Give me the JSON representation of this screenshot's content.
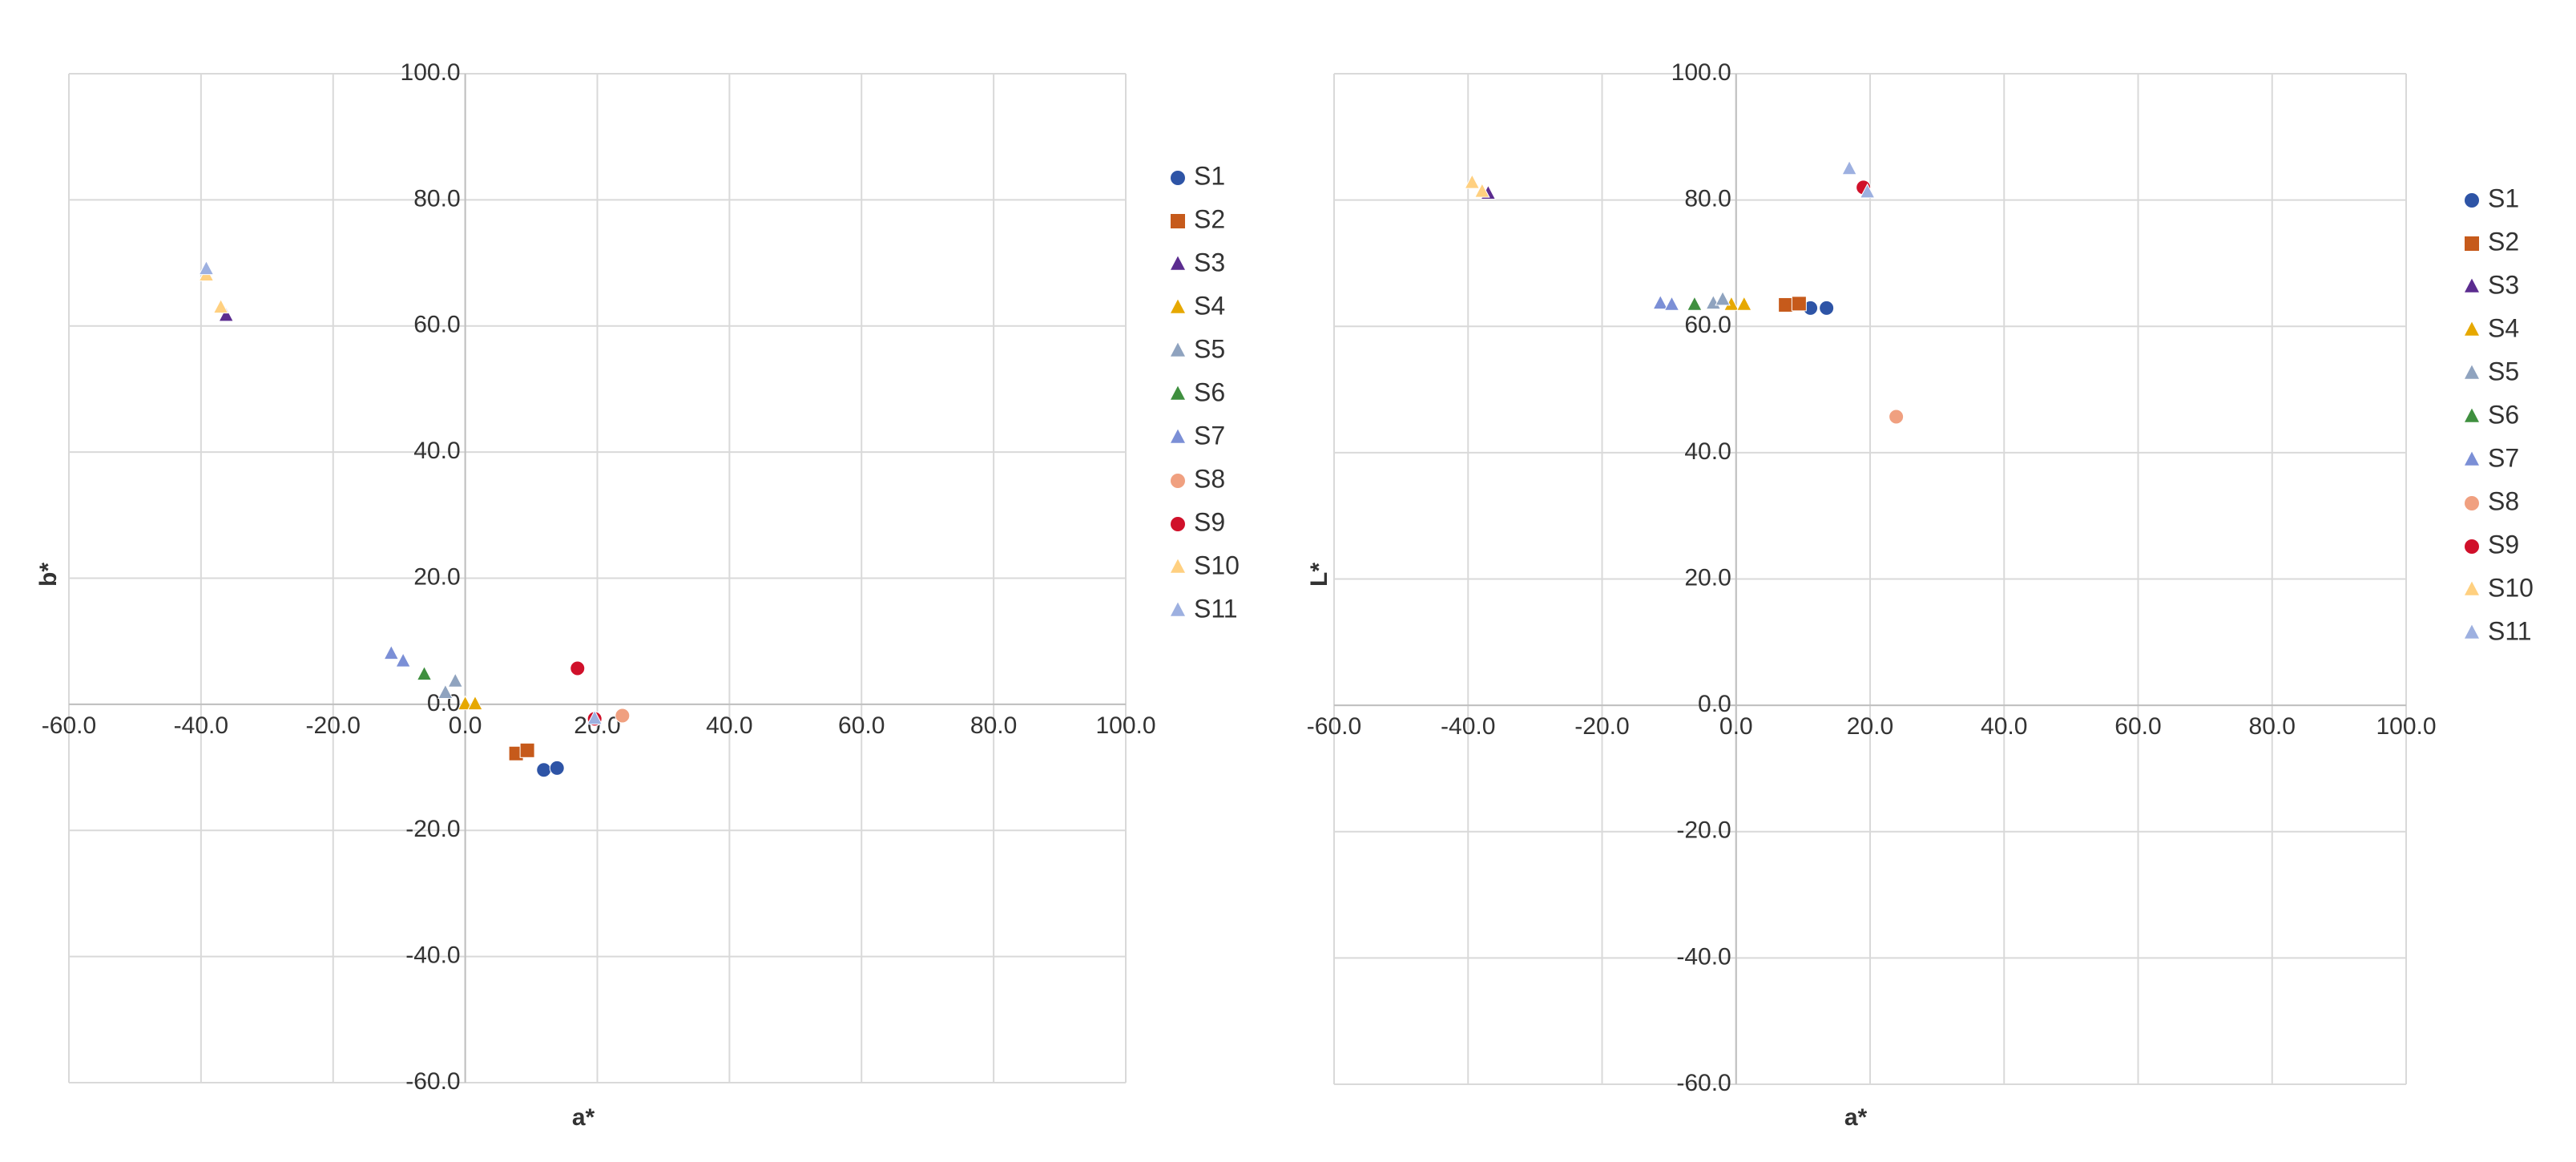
{
  "chart_data": [
    {
      "type": "scatter",
      "x_label": "a*",
      "y_label": "b*",
      "grid": true,
      "legend": "right",
      "xlim": [
        -60,
        100
      ],
      "ylim": [
        -60,
        100
      ],
      "xticks": [
        {
          "value": -60,
          "label": "-60.0"
        },
        {
          "value": -40,
          "label": "-40.0"
        },
        {
          "value": -20,
          "label": "-20.0"
        },
        {
          "value": 0,
          "label": "0.0"
        },
        {
          "value": 20,
          "label": "20.0"
        },
        {
          "value": 40,
          "label": "40.0"
        },
        {
          "value": 60,
          "label": "60.0"
        },
        {
          "value": 80,
          "label": "80.0"
        },
        {
          "value": 100,
          "label": "100.0"
        }
      ],
      "yticks": [
        {
          "value": -60,
          "label": "-60.0"
        },
        {
          "value": -40,
          "label": "-40.0"
        },
        {
          "value": -20,
          "label": "-20.0"
        },
        {
          "value": 0,
          "label": "0.0"
        },
        {
          "value": 20,
          "label": "20.0"
        },
        {
          "value": 40,
          "label": "40.0"
        },
        {
          "value": 60,
          "label": "60.0"
        },
        {
          "value": 80,
          "label": "80.0"
        },
        {
          "value": 100,
          "label": "100.0"
        }
      ],
      "series": [
        {
          "name": "S1",
          "color": "#2e54a6",
          "marker": "circle",
          "x": [
            11.9,
            13.9
          ],
          "values": [
            -10.4,
            -10.1
          ]
        },
        {
          "name": "S2",
          "color": "#c65a1b",
          "marker": "square",
          "x": [
            7.7,
            9.4
          ],
          "values": [
            -7.8,
            -7.3
          ]
        },
        {
          "name": "S3",
          "color": "#5b2c8f",
          "marker": "triangle",
          "x": [
            -36.2
          ],
          "values": [
            61.6
          ]
        },
        {
          "name": "S4",
          "color": "#e6a800",
          "marker": "triangle",
          "x": [
            0,
            1.5
          ],
          "values": [
            0,
            0
          ]
        },
        {
          "name": "S5",
          "color": "#8fa3bf",
          "marker": "triangle",
          "x": [
            -3,
            -1.5
          ],
          "values": [
            1.8,
            3.6
          ]
        },
        {
          "name": "S6",
          "color": "#3f8f3f",
          "marker": "triangle",
          "x": [
            -6.2
          ],
          "values": [
            4.7
          ]
        },
        {
          "name": "S7",
          "color": "#7b8fd6",
          "marker": "triangle",
          "x": [
            -11.2,
            -9.4
          ],
          "values": [
            8,
            6.8
          ]
        },
        {
          "name": "S8",
          "color": "#f0a080",
          "marker": "circle",
          "x": [
            23.8
          ],
          "values": [
            -1.8
          ]
        },
        {
          "name": "S9",
          "color": "#d0102a",
          "marker": "circle",
          "x": [
            19.6,
            17
          ],
          "values": [
            -2.3,
            5.7
          ]
        },
        {
          "name": "S10",
          "color": "#ffd080",
          "marker": "triangle",
          "x": [
            -39.2,
            -37
          ],
          "values": [
            68,
            62.9
          ]
        },
        {
          "name": "S11",
          "color": "#9db0e0",
          "marker": "triangle",
          "x": [
            -39.2,
            19.6
          ],
          "values": [
            69,
            -2.3
          ]
        }
      ]
    },
    {
      "type": "scatter",
      "x_label": "a*",
      "y_label": "L*",
      "grid": true,
      "legend": "right",
      "xlim": [
        -60,
        100
      ],
      "ylim": [
        -60,
        100
      ],
      "xticks": [
        {
          "value": -60,
          "label": "-60.0"
        },
        {
          "value": -40,
          "label": "-40.0"
        },
        {
          "value": -20,
          "label": "-20.0"
        },
        {
          "value": 0,
          "label": "0.0"
        },
        {
          "value": 20,
          "label": "20.0"
        },
        {
          "value": 40,
          "label": "40.0"
        },
        {
          "value": 60,
          "label": "60.0"
        },
        {
          "value": 80,
          "label": "80.0"
        },
        {
          "value": 100,
          "label": "100.0"
        }
      ],
      "yticks": [
        {
          "value": -60,
          "label": "-60.0"
        },
        {
          "value": -40,
          "label": "-40.0"
        },
        {
          "value": -20,
          "label": "-20.0"
        },
        {
          "value": 0,
          "label": "0.0"
        },
        {
          "value": 20,
          "label": "20.0"
        },
        {
          "value": 40,
          "label": "40.0"
        },
        {
          "value": 60,
          "label": "60.0"
        },
        {
          "value": 80,
          "label": "80.0"
        },
        {
          "value": 100,
          "label": "100.0"
        }
      ],
      "series": [
        {
          "name": "S1",
          "color": "#2e54a6",
          "marker": "circle",
          "x": [
            11.1,
            13.5
          ],
          "values": [
            62.9,
            62.9
          ]
        },
        {
          "name": "S2",
          "color": "#c65a1b",
          "marker": "square",
          "x": [
            7.4,
            9.4
          ],
          "values": [
            63.4,
            63.6
          ]
        },
        {
          "name": "S3",
          "color": "#5b2c8f",
          "marker": "triangle",
          "x": [
            -37
          ],
          "values": [
            81
          ]
        },
        {
          "name": "S4",
          "color": "#e6a800",
          "marker": "triangle",
          "x": [
            -0.7,
            1.2
          ],
          "values": [
            63.4,
            63.4
          ]
        },
        {
          "name": "S5",
          "color": "#8fa3bf",
          "marker": "triangle",
          "x": [
            -3.4,
            -2
          ],
          "values": [
            63.6,
            64.2
          ]
        },
        {
          "name": "S6",
          "color": "#3f8f3f",
          "marker": "triangle",
          "x": [
            -6.2
          ],
          "values": [
            63.4
          ]
        },
        {
          "name": "S7",
          "color": "#7b8fd6",
          "marker": "triangle",
          "x": [
            -11.3,
            -9.6
          ],
          "values": [
            63.6,
            63.4
          ]
        },
        {
          "name": "S8",
          "color": "#f0a080",
          "marker": "circle",
          "x": [
            23.9
          ],
          "values": [
            45.7
          ]
        },
        {
          "name": "S9",
          "color": "#d0102a",
          "marker": "circle",
          "x": [
            19
          ],
          "values": [
            82
          ]
        },
        {
          "name": "S10",
          "color": "#ffd080",
          "marker": "triangle",
          "x": [
            -39.4,
            -37.9
          ],
          "values": [
            82.7,
            81.3
          ]
        },
        {
          "name": "S11",
          "color": "#9db0e0",
          "marker": "triangle",
          "x": [
            16.9,
            19.6
          ],
          "values": [
            84.9,
            81.2
          ]
        }
      ]
    }
  ]
}
